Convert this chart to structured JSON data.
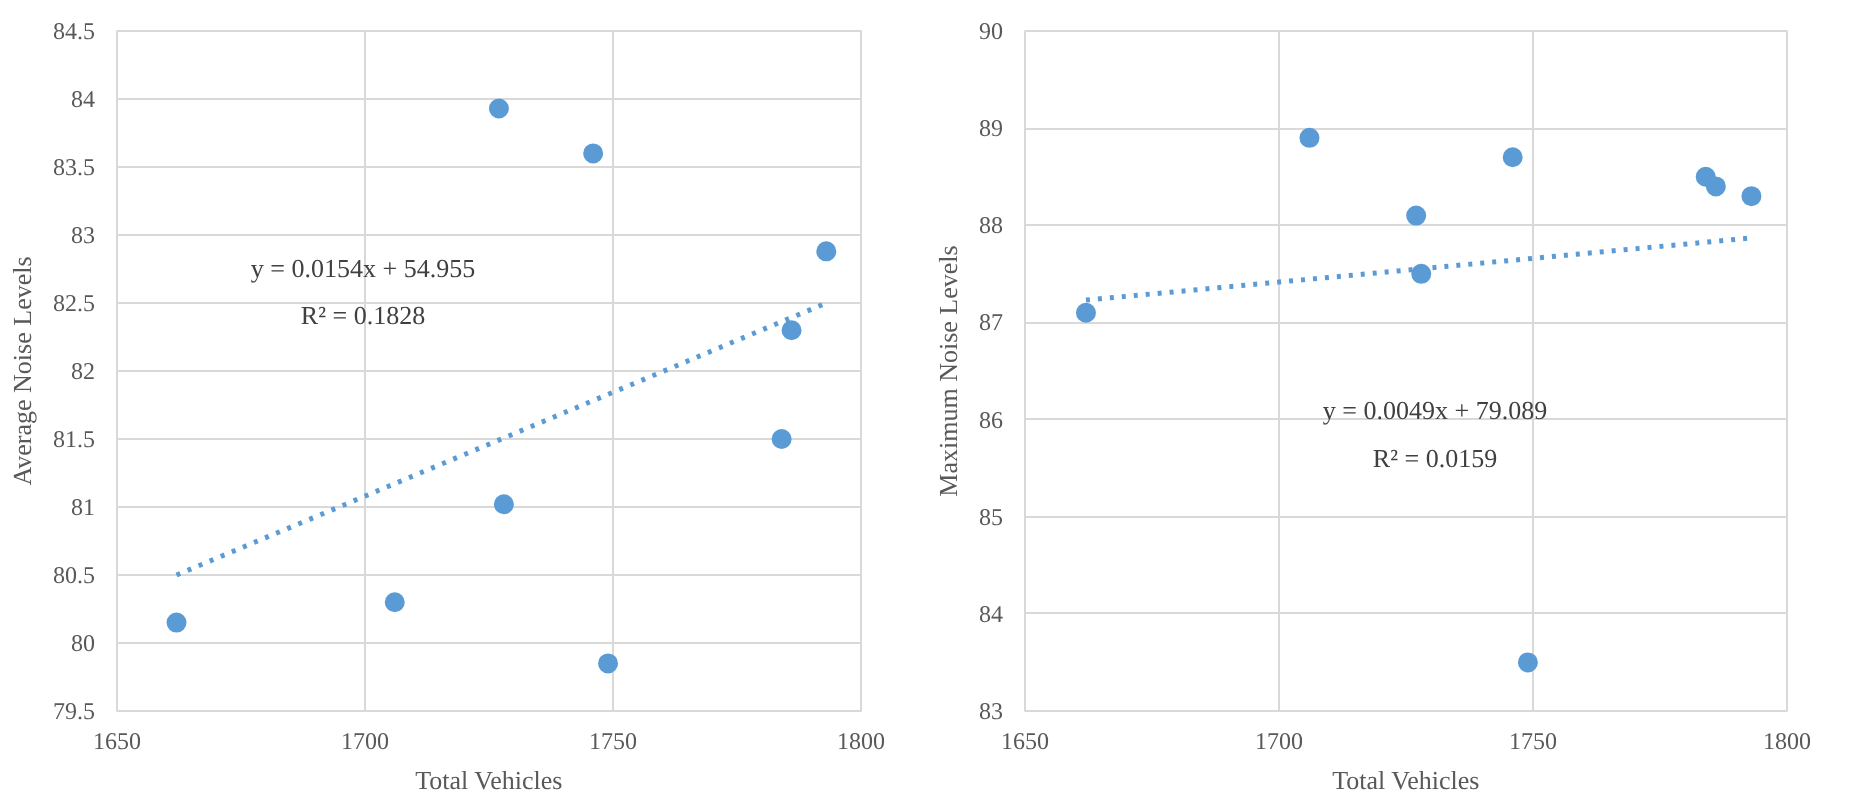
{
  "chart_data": [
    {
      "type": "scatter",
      "xlabel": "Total Vehicles",
      "ylabel": "Average Noise Levels",
      "xlim": [
        1650,
        1800
      ],
      "xticks": [
        1650,
        1700,
        1750,
        1800
      ],
      "ylim": [
        79.5,
        84.5
      ],
      "yticks": [
        79.5,
        80,
        80.5,
        81,
        81.5,
        82,
        82.5,
        83,
        83.5,
        84,
        84.5
      ],
      "grid": true,
      "annotations": [
        "y = 0.0154x + 54.955",
        "R² = 0.1828"
      ],
      "series": [
        {
          "color": "#5b9bd5",
          "marker": "circle",
          "x": [
            1662,
            1706,
            1727,
            1728,
            1746,
            1749,
            1784,
            1786,
            1793
          ],
          "values": [
            80.15,
            80.3,
            83.93,
            81.02,
            83.6,
            79.85,
            81.5,
            82.3,
            82.88
          ]
        },
        {
          "type": "line",
          "color": "#5b9bd5",
          "line_style": "dotted",
          "x": [
            1662,
            1793
          ],
          "values": [
            80.5,
            82.5
          ]
        }
      ]
    },
    {
      "type": "scatter",
      "xlabel": "Total Vehicles",
      "ylabel": "Maximum Noise Levels",
      "xlim": [
        1650,
        1800
      ],
      "xticks": [
        1650,
        1700,
        1750,
        1800
      ],
      "ylim": [
        83,
        90
      ],
      "yticks": [
        83,
        84,
        85,
        86,
        87,
        88,
        89,
        90
      ],
      "grid": true,
      "annotations": [
        "y = 0.0049x + 79.089",
        "R² = 0.0159"
      ],
      "series": [
        {
          "color": "#5b9bd5",
          "marker": "circle",
          "x": [
            1662,
            1706,
            1727,
            1728,
            1746,
            1749,
            1784,
            1786,
            1793
          ],
          "values": [
            87.1,
            88.9,
            88.1,
            87.5,
            88.7,
            83.5,
            88.5,
            88.4,
            88.3
          ]
        },
        {
          "type": "line",
          "color": "#5b9bd5",
          "line_style": "dotted",
          "x": [
            1662,
            1793
          ],
          "values": [
            87.23,
            87.87
          ]
        }
      ]
    }
  ]
}
